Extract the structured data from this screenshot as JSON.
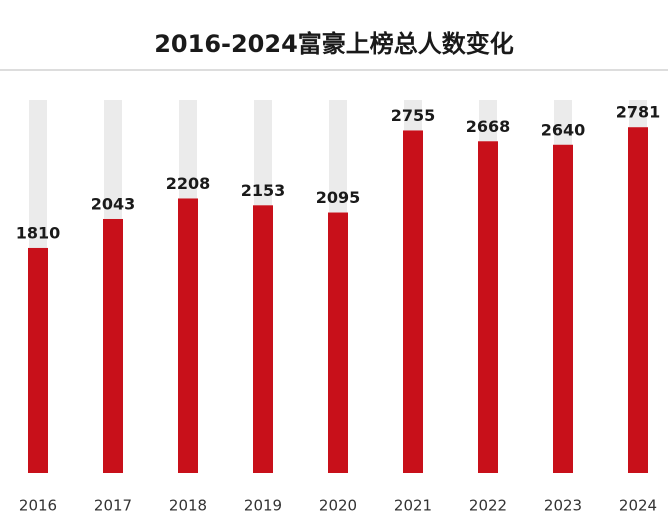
{
  "chart_data": {
    "type": "bar",
    "title": "2016-2024富豪上榜总人数变化",
    "categories": [
      "2016",
      "2017",
      "2018",
      "2019",
      "2020",
      "2021",
      "2022",
      "2023",
      "2024"
    ],
    "values": [
      1810,
      2043,
      2208,
      2153,
      2095,
      2755,
      2668,
      2640,
      2781
    ],
    "color": "#c8101a",
    "ylim": [
      0,
      3000
    ]
  }
}
